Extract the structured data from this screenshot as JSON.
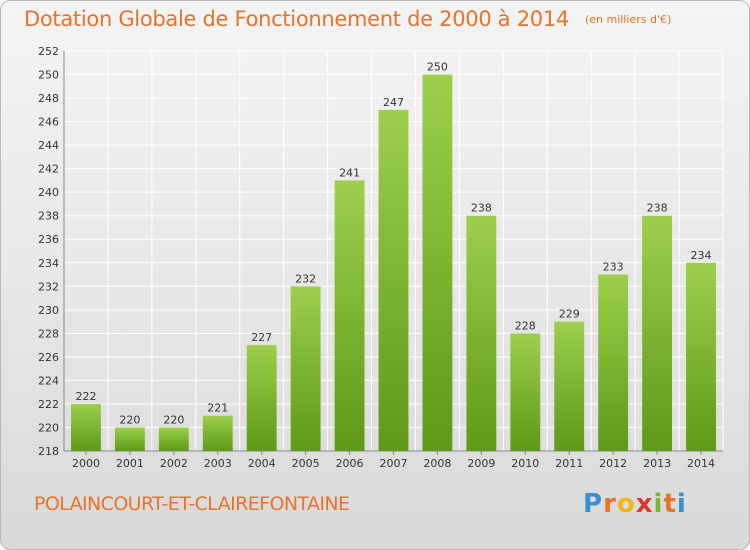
{
  "header": {
    "title": "Dotation Globale de Fonctionnement de 2000 à 2014",
    "unit": "(en milliers d'€)"
  },
  "footer": {
    "commune": "POLAINCOURT-ET-CLAIREFONTAINE",
    "logo_letters": [
      "P",
      "r",
      "o",
      "x",
      "i",
      "t",
      "i"
    ],
    "logo_colors": [
      "#3a8fd0",
      "#e8732a",
      "#f2b51a",
      "#d63a2a",
      "#7cb82f",
      "#e8732a",
      "#3a8fd0"
    ]
  },
  "colors": {
    "bar_top": "#9ccf4c",
    "bar_bottom": "#5d9a16",
    "title": "#e8732a",
    "grid": "#ffffff"
  },
  "chart_data": {
    "type": "bar",
    "title": "Dotation Globale de Fonctionnement de 2000 à 2014",
    "subtitle": "(en milliers d'€)",
    "categories": [
      "2000",
      "2001",
      "2002",
      "2003",
      "2004",
      "2005",
      "2006",
      "2007",
      "2008",
      "2009",
      "2010",
      "2011",
      "2012",
      "2013",
      "2014"
    ],
    "values": [
      222,
      220,
      220,
      221,
      227,
      232,
      241,
      247,
      250,
      238,
      228,
      229,
      233,
      238,
      234
    ],
    "ylim": [
      218,
      252
    ],
    "yticks": [
      218,
      220,
      222,
      224,
      226,
      228,
      230,
      232,
      234,
      236,
      238,
      240,
      242,
      244,
      246,
      248,
      250,
      252
    ],
    "grid": true,
    "xlabel": "",
    "ylabel": ""
  }
}
